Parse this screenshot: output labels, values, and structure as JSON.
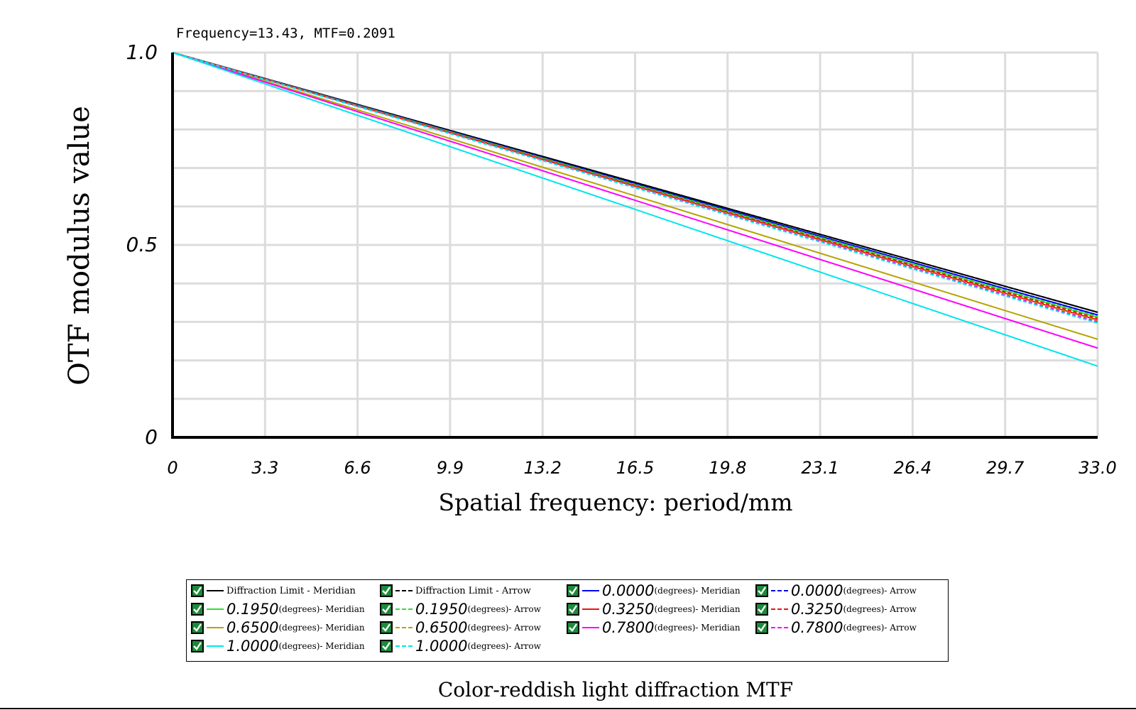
{
  "readout": "Frequency=13.43, MTF=0.2091",
  "colors": {
    "grid": "#dcdcdc",
    "axis": "#000000"
  },
  "chart_data": {
    "type": "line",
    "title": "Color-reddish light diffraction MTF",
    "xlabel": "Spatial frequency: period/mm",
    "ylabel": "OTF modulus value",
    "xlim": [
      0,
      33.0
    ],
    "ylim": [
      0,
      1.0
    ],
    "xticks": [
      "0",
      "3.3",
      "6.6",
      "9.9",
      "13.2",
      "16.5",
      "19.8",
      "23.1",
      "26.4",
      "29.7",
      "33.0"
    ],
    "yticks": [
      {
        "value": 0,
        "label": "0"
      },
      {
        "value": 0.5,
        "label": "0.5"
      },
      {
        "value": 1.0,
        "label": "1.0"
      }
    ],
    "grid": true,
    "legend_position": "bottom",
    "series": [
      {
        "name": "Diffraction Limit - Meridian",
        "color": "#000000",
        "dash": "solid",
        "end": 0.325
      },
      {
        "name": "Diffraction Limit - Arrow",
        "color": "#000000",
        "dash": "dashed",
        "end": 0.325
      },
      {
        "name": "0.0000(degrees)- Meridian",
        "color": "#0000ff",
        "dash": "solid",
        "end": 0.318
      },
      {
        "name": "0.0000(degrees)- Arrow",
        "color": "#0000ff",
        "dash": "dashed",
        "end": 0.318
      },
      {
        "name": "0.1950(degrees)- Meridian",
        "color": "#33dd33",
        "dash": "solid",
        "end": 0.312
      },
      {
        "name": "0.1950(degrees)- Arrow",
        "color": "#33dd33",
        "dash": "dashed",
        "end": 0.314
      },
      {
        "name": "0.3250(degrees)- Meridian",
        "color": "#ee1111",
        "dash": "solid",
        "end": 0.305
      },
      {
        "name": "0.3250(degrees)- Arrow",
        "color": "#ee1111",
        "dash": "dashed",
        "end": 0.309
      },
      {
        "name": "0.6500(degrees)- Meridian",
        "color": "#b4a400",
        "dash": "solid",
        "end": 0.255
      },
      {
        "name": "0.6500(degrees)- Arrow",
        "color": "#b4a400",
        "dash": "dashed",
        "end": 0.303
      },
      {
        "name": "0.7800(degrees)- Meridian",
        "color": "#ff00ff",
        "dash": "solid",
        "end": 0.232
      },
      {
        "name": "0.7800(degrees)- Arrow",
        "color": "#ff00ff",
        "dash": "dashed",
        "end": 0.3
      },
      {
        "name": "1.0000(degrees)- Meridian",
        "color": "#00e5ee",
        "dash": "solid",
        "end": 0.185
      },
      {
        "name": "1.0000(degrees)- Arrow",
        "color": "#00e5ee",
        "dash": "dashed",
        "end": 0.297
      }
    ]
  },
  "legend": {
    "items": [
      {
        "num": "",
        "unit": "",
        "text": "Diffraction Limit - Meridian",
        "series": 0
      },
      {
        "num": "",
        "unit": "",
        "text": "Diffraction Limit - Arrow",
        "series": 1
      },
      {
        "num": "0.0000",
        "unit": "(degrees)- Meridian",
        "text": "",
        "series": 2
      },
      {
        "num": "0.0000",
        "unit": "(degrees)- Arrow",
        "text": "",
        "series": 3
      },
      {
        "num": "0.1950",
        "unit": "(degrees)- Meridian",
        "text": "",
        "series": 4
      },
      {
        "num": "0.1950",
        "unit": "(degrees)- Arrow",
        "text": "",
        "series": 5
      },
      {
        "num": "0.3250",
        "unit": "(degrees)- Meridian",
        "text": "",
        "series": 6
      },
      {
        "num": "0.3250",
        "unit": "(degrees)- Arrow",
        "text": "",
        "series": 7
      },
      {
        "num": "0.6500",
        "unit": "(degrees)- Meridian",
        "text": "",
        "series": 8
      },
      {
        "num": "0.6500",
        "unit": "(degrees)- Arrow",
        "text": "",
        "series": 9
      },
      {
        "num": "0.7800",
        "unit": "(degrees)- Meridian",
        "text": "",
        "series": 10
      },
      {
        "num": "0.7800",
        "unit": "(degrees)- Arrow",
        "text": "",
        "series": 11
      },
      {
        "num": "1.0000",
        "unit": "(degrees)- Meridian",
        "text": "",
        "series": 12
      },
      {
        "num": "1.0000",
        "unit": "(degrees)- Arrow",
        "text": "",
        "series": 13
      }
    ]
  }
}
